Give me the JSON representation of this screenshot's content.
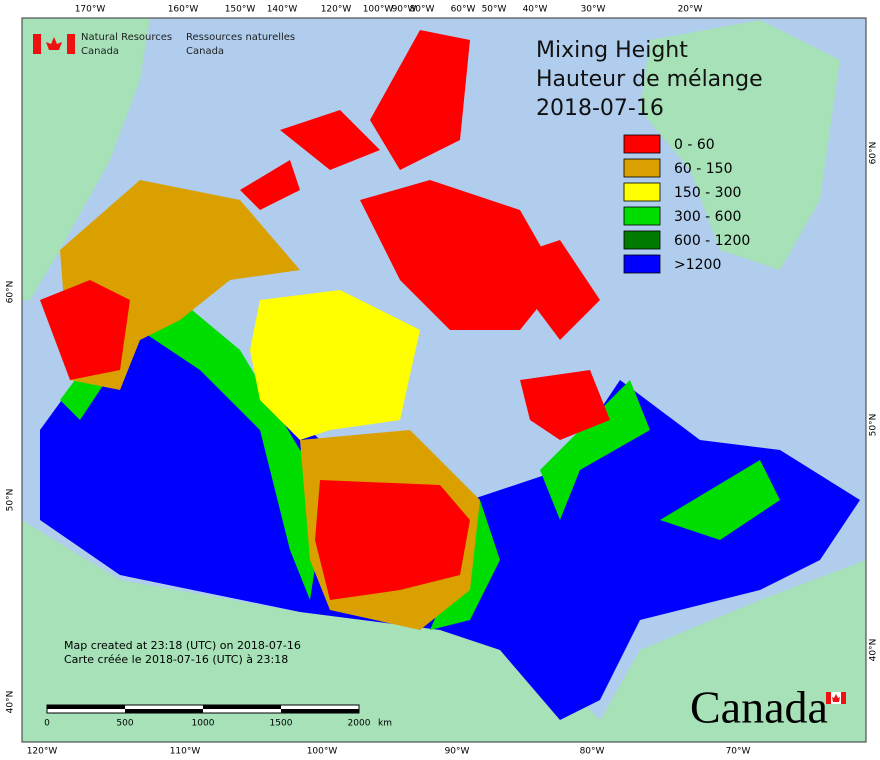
{
  "header": {
    "agency_en": [
      "Natural Resources",
      "Canada"
    ],
    "agency_fr": [
      "Ressources naturelles",
      "Canada"
    ],
    "title": [
      "Mixing Height",
      "Hauteur de mélange",
      "2018-07-16"
    ]
  },
  "legend": {
    "items": [
      {
        "label": "0 - 60",
        "color": "#ff0000"
      },
      {
        "label": "60 - 150",
        "color": "#d9a000"
      },
      {
        "label": "150 - 300",
        "color": "#ffff00"
      },
      {
        "label": "300 - 600",
        "color": "#00dd00"
      },
      {
        "label": "600 - 1200",
        "color": "#007a00"
      },
      {
        "label": ">1200",
        "color": "#0000ff"
      }
    ]
  },
  "graticule": {
    "top": [
      "170°W",
      "160°W",
      "150°W",
      "140°W",
      "120°W",
      "100°W",
      "90°W",
      "80°W",
      "60°W",
      "50°W",
      "40°W",
      "30°W",
      "20°W"
    ],
    "bottom": [
      "120°W",
      "110°W",
      "100°W",
      "90°W",
      "80°W",
      "70°W"
    ],
    "left": [
      "60°N",
      "50°N",
      "40°N"
    ],
    "right": [
      "60°N",
      "50°N",
      "40°N"
    ]
  },
  "scale_bar": {
    "labels": [
      "0",
      "500",
      "1000",
      "1500",
      "2000"
    ],
    "unit": "km"
  },
  "footer": [
    "Map created at 23:18 (UTC) on 2018-07-16",
    "Carte créée le 2018-07-16 (UTC) à 23:18"
  ],
  "wordmark": "Canada"
}
